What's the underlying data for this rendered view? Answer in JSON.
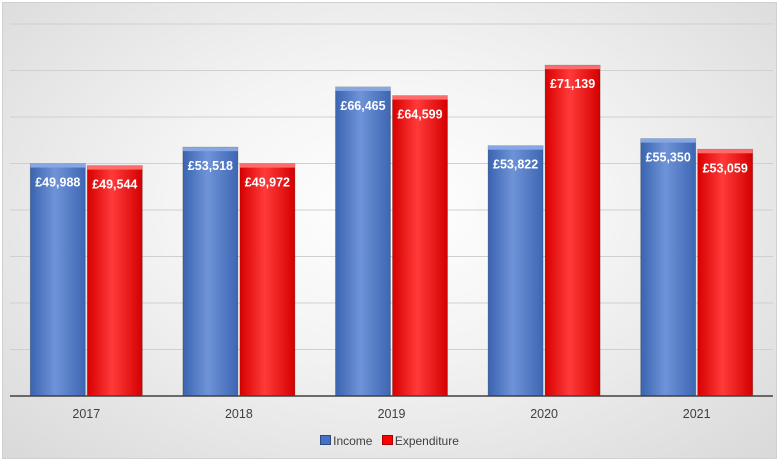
{
  "chart_data": {
    "type": "bar",
    "categories": [
      "2017",
      "2018",
      "2019",
      "2020",
      "2021"
    ],
    "series": [
      {
        "name": "Income",
        "values": [
          49988,
          53518,
          66465,
          53822,
          55350
        ],
        "labels": [
          "£49,988",
          "£53,518",
          "£66,465",
          "£53,822",
          "£55,350"
        ],
        "color": "#4472c4"
      },
      {
        "name": "Expenditure",
        "values": [
          49544,
          49972,
          64599,
          71139,
          53059
        ],
        "labels": [
          "£49,544",
          "£49,972",
          "£64,599",
          "£71,139",
          "£53,059"
        ],
        "color": "#ff0000"
      }
    ],
    "title": "",
    "xlabel": "",
    "ylabel": "",
    "ylim": [
      0,
      80000
    ],
    "grid": true,
    "legend_position": "bottom"
  }
}
